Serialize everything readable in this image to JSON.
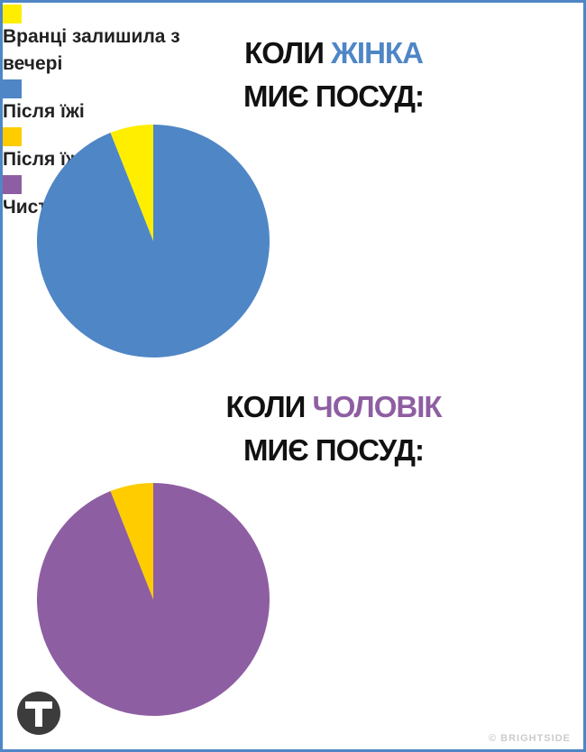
{
  "chart_data": [
    {
      "type": "pie",
      "title": {
        "before": "КОЛИ",
        "highlight": "ЖІНКА",
        "after": "МИЄ ПОСУД:",
        "highlight_color": "#4f86c6"
      },
      "categories": [
        "Вранці залишила з вечері",
        "Після їжі"
      ],
      "values": [
        6,
        94
      ],
      "colors": [
        "#ffee00",
        "#4f86c6"
      ]
    },
    {
      "type": "pie",
      "title": {
        "before": "КОЛИ",
        "highlight": "ЧОЛОВІК",
        "after": "МИЄ ПОСУД:",
        "highlight_color": "#8e5ea2"
      },
      "categories": [
        "Після їжі",
        "Чистої немає"
      ],
      "values": [
        6,
        94
      ],
      "colors": [
        "#ffcc00",
        "#8e5ea2"
      ]
    }
  ],
  "watermark": "© BRIGHTSIDE"
}
